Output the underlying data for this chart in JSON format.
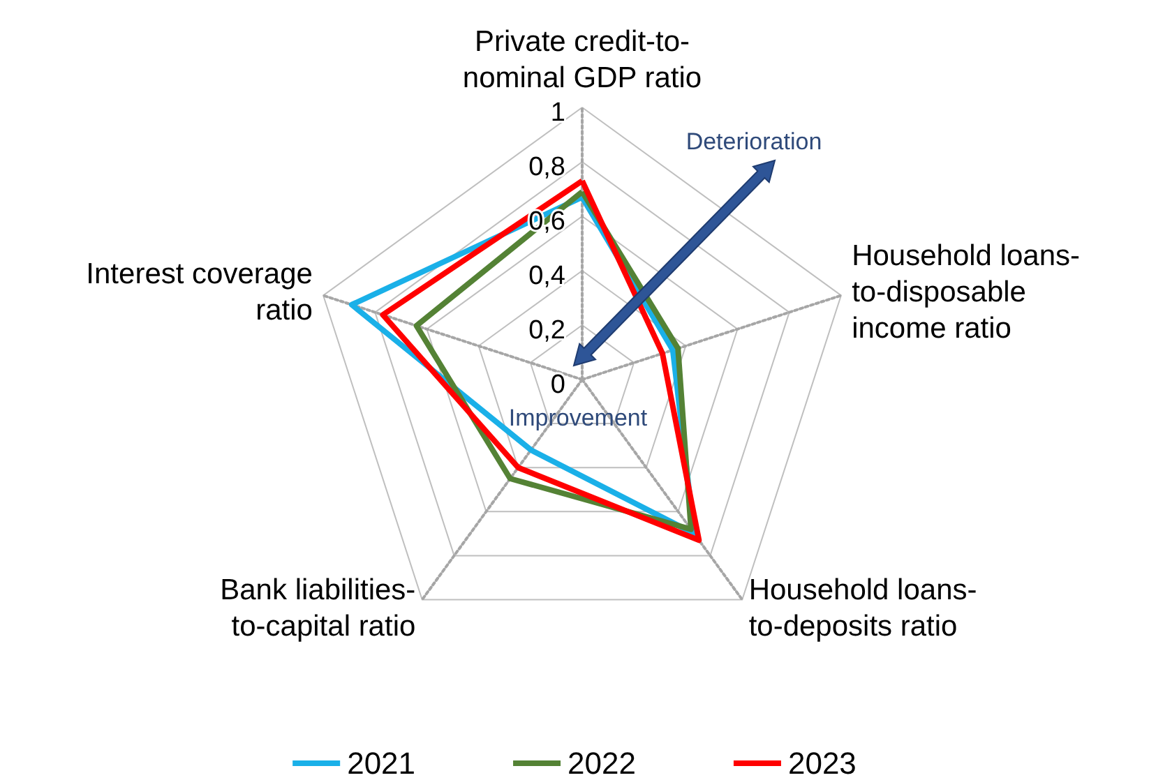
{
  "chart_data": {
    "type": "radar",
    "categories": [
      "Private credit-to-nominal GDP ratio",
      "Household loans-to-disposable income ratio",
      "Household loans-to-deposits ratio",
      "Bank liabilities-to-capital ratio",
      "Interest coverage ratio"
    ],
    "series": [
      {
        "name": "2021",
        "color": "#1ab0e8",
        "values": [
          0.67,
          0.35,
          0.7,
          0.32,
          0.89
        ]
      },
      {
        "name": "2022",
        "color": "#548235",
        "values": [
          0.69,
          0.37,
          0.68,
          0.45,
          0.64
        ]
      },
      {
        "name": "2023",
        "color": "#ff0000",
        "values": [
          0.73,
          0.31,
          0.73,
          0.4,
          0.77
        ]
      }
    ],
    "ylim": [
      0,
      1
    ],
    "yticks": [
      0,
      {
        "value": 0.2,
        "label": "0,2"
      },
      {
        "value": 0.4,
        "label": "0,4"
      },
      {
        "value": 0.6,
        "label": "0,6"
      },
      {
        "value": 0.8,
        "label": "0,8"
      },
      1
    ],
    "annotations": [
      "Deterioration",
      "Improvement"
    ],
    "legend": "bottom",
    "grid": true,
    "marker": "none",
    "line_style": "solid"
  }
}
